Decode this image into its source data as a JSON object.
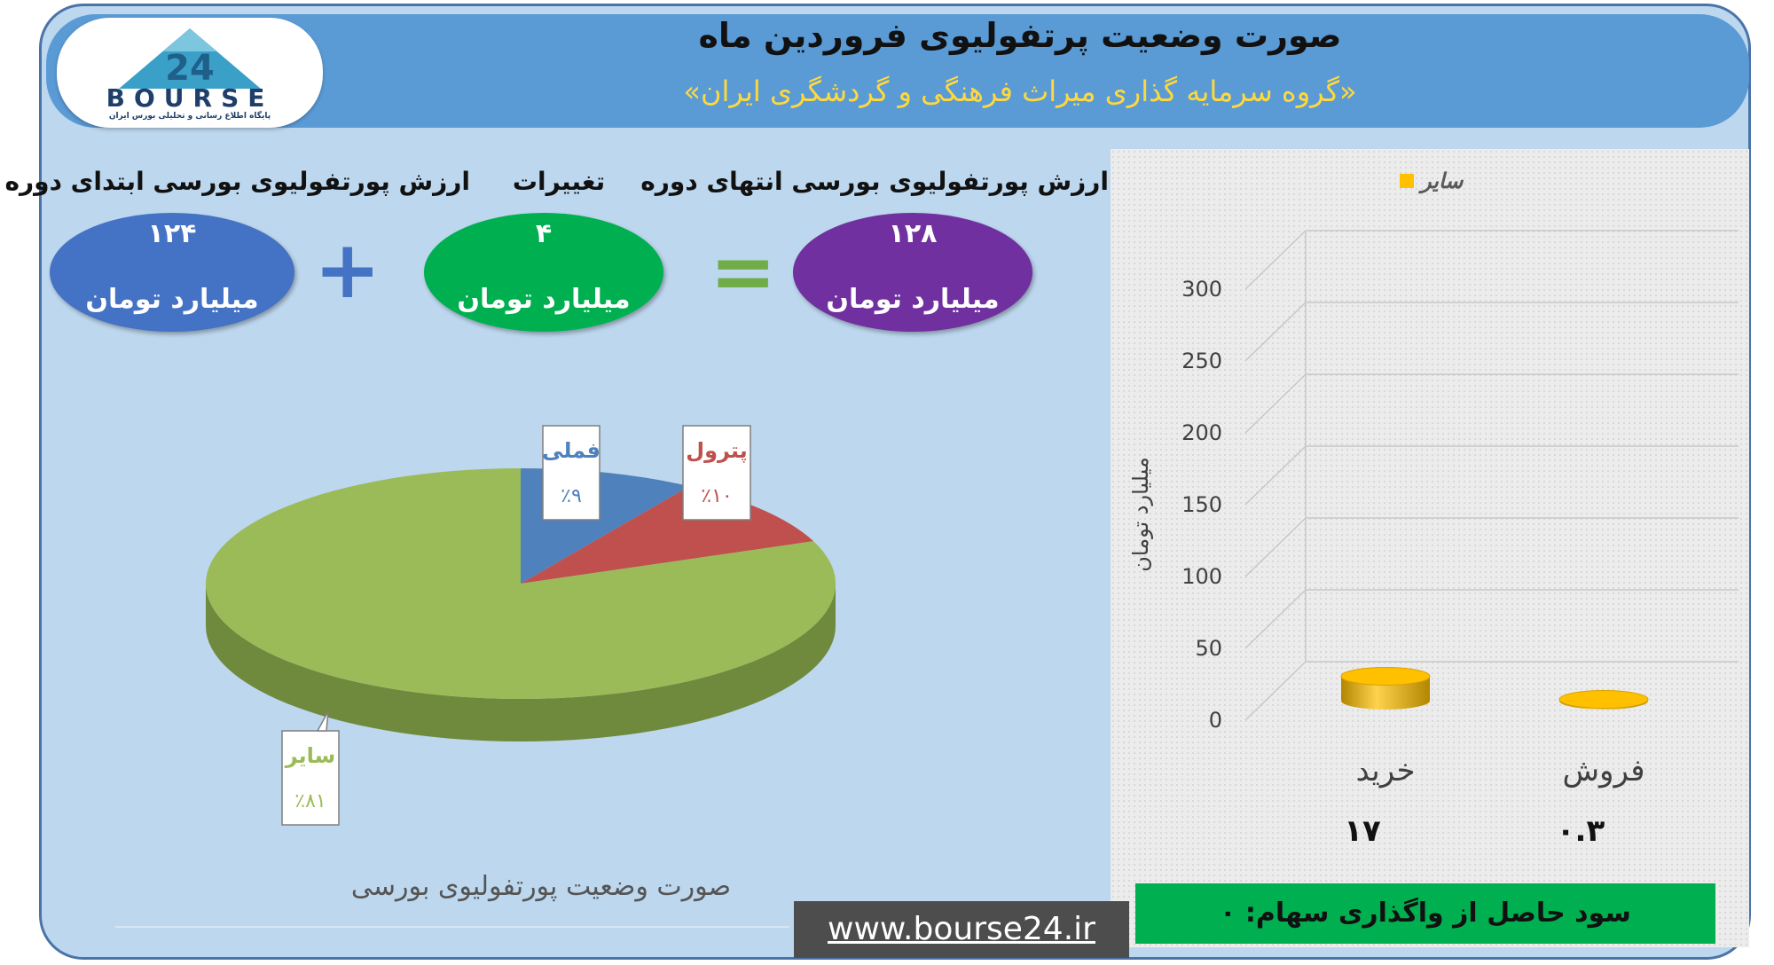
{
  "header": {
    "title": "صورت وضعیت پرتفولیوی فروردین ماه",
    "subtitle": "«گروه سرمایه گذاری میراث فرهنگی و گردشگری ایران»",
    "logo_text": "BOURSE",
    "logo_number": "24",
    "logo_subtitle": "پایگاه اطلاع رسانی و تحلیلی بورس ایران"
  },
  "summary": {
    "start": {
      "label": "ارزش پورتفولیوی بورسی ابتدای دوره",
      "value": "۱۲۴",
      "unit": "میلیارد تومان"
    },
    "plus": "+",
    "change": {
      "label": "تغییرات",
      "value": "۴",
      "unit": "میلیارد تومان"
    },
    "equals": "=",
    "end": {
      "label": "ارزش پورتفولیوی بورسی انتهای دوره",
      "value": "۱۲۸",
      "unit": "میلیارد تومان"
    }
  },
  "colors": {
    "start": "#4472c4",
    "change": "#00b050",
    "end": "#7030a0",
    "pie_famli": "#4f81bd",
    "pie_petrol": "#c0504d",
    "pie_sayer": "#9bbb59",
    "bar": "#ffc000"
  },
  "chart_data": [
    {
      "type": "pie",
      "title": "صورت وضعیت پورتفولیوی بورسی",
      "slices": [
        {
          "name": "فملی",
          "value": 9,
          "label": "٪۹"
        },
        {
          "name": "پترول",
          "value": 10,
          "label": "٪۱۰"
        },
        {
          "name": "سایر",
          "value": 81,
          "label": "٪۸۱"
        }
      ]
    },
    {
      "type": "bar",
      "categories": [
        "خرید",
        "فروش"
      ],
      "values": [
        17,
        0.3
      ],
      "value_labels": [
        "۱۷",
        "۰.۳"
      ],
      "series": [
        {
          "name": "سایر",
          "values": [
            17,
            0.3
          ]
        }
      ],
      "ylabel": "میلیارد تومان",
      "ylim": [
        0,
        300
      ],
      "yticks": [
        0,
        50,
        100,
        150,
        200,
        250,
        300
      ],
      "legend": "top"
    }
  ],
  "footer": {
    "caption": "صورت وضعیت پورتفولیوی بورسی",
    "url": "www.bourse24.ir",
    "profit": "سود حاصل از واگذاری سهام: ۰"
  }
}
